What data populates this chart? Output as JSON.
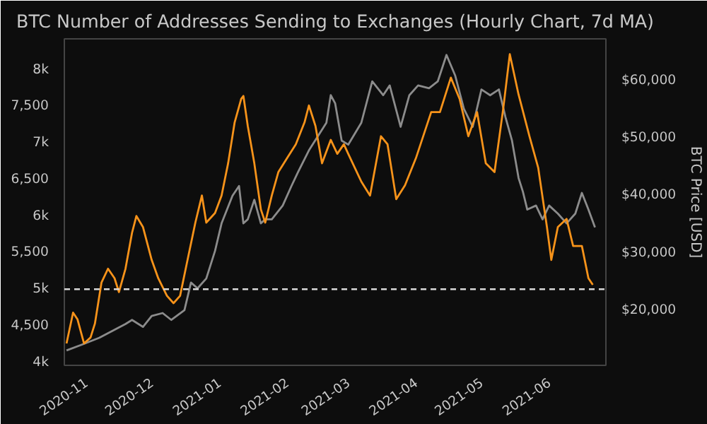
{
  "chart_data": {
    "type": "line",
    "title": "BTC Number of Addresses Sending to Exchanges (Hourly Chart, 7d MA)",
    "y2label": "BTC Price [USD]",
    "xlim": [
      "2020-10-22",
      "2021-06-27"
    ],
    "xticks": [
      "2020-11",
      "2020-12",
      "2021-01",
      "2021-02",
      "2021-03",
      "2021-04",
      "2021-05",
      "2021-06"
    ],
    "ylim": [
      3960,
      8420
    ],
    "yticks": [
      {
        "value": 4000,
        "label": "4k"
      },
      {
        "value": 4500,
        "label": "4,500"
      },
      {
        "value": 5000,
        "label": "5k"
      },
      {
        "value": 5500,
        "label": "5,500"
      },
      {
        "value": 6000,
        "label": "6k"
      },
      {
        "value": 6500,
        "label": "6,500"
      },
      {
        "value": 7000,
        "label": "7k"
      },
      {
        "value": 7500,
        "label": "7,500"
      },
      {
        "value": 8000,
        "label": "8k"
      }
    ],
    "y2lim": [
      10400,
      67200
    ],
    "y2ticks": [
      {
        "value": 20000,
        "label": "$20,000"
      },
      {
        "value": 30000,
        "label": "$30,000"
      },
      {
        "value": 40000,
        "label": "$40,000"
      },
      {
        "value": 50000,
        "label": "$50,000"
      },
      {
        "value": 60000,
        "label": "$60,000"
      }
    ],
    "grid": false,
    "line_style": "solid",
    "marker": "none",
    "ref_lines": [
      {
        "axis": "y",
        "value": 5000,
        "color": "#d8d8d8",
        "line_style": "dashed"
      }
    ],
    "series": [
      {
        "color": "#8c8c8c",
        "axis": "y2",
        "x": [
          "2020-10-23",
          "2020-10-30",
          "2020-11-07",
          "2020-11-13",
          "2020-11-19",
          "2020-11-22",
          "2020-11-27",
          "2020-12-01",
          "2020-12-06",
          "2020-12-10",
          "2020-12-16",
          "2020-12-19",
          "2020-12-22",
          "2020-12-26",
          "2020-12-30",
          "2021-01-02",
          "2021-01-07",
          "2021-01-10",
          "2021-01-12",
          "2021-01-14",
          "2021-01-17",
          "2021-01-20",
          "2021-01-22",
          "2021-01-25",
          "2021-01-30",
          "2021-02-03",
          "2021-02-06",
          "2021-02-11",
          "2021-02-15",
          "2021-02-19",
          "2021-02-21",
          "2021-02-23",
          "2021-02-26",
          "2021-03-01",
          "2021-03-07",
          "2021-03-12",
          "2021-03-17",
          "2021-03-20",
          "2021-03-25",
          "2021-03-29",
          "2021-04-02",
          "2021-04-07",
          "2021-04-11",
          "2021-04-15",
          "2021-04-19",
          "2021-04-23",
          "2021-04-27",
          "2021-05-01",
          "2021-05-05",
          "2021-05-09",
          "2021-05-12",
          "2021-05-15",
          "2021-05-18",
          "2021-05-20",
          "2021-05-22",
          "2021-05-26",
          "2021-05-29",
          "2021-06-01",
          "2021-06-05",
          "2021-06-09",
          "2021-06-13",
          "2021-06-16",
          "2021-06-19",
          "2021-06-22"
        ],
        "values": [
          13000,
          14000,
          15200,
          16400,
          17600,
          18300,
          17100,
          19000,
          19500,
          18300,
          20000,
          24800,
          23800,
          25500,
          30300,
          35100,
          39900,
          41600,
          35100,
          35800,
          39200,
          35100,
          35800,
          35800,
          38200,
          41600,
          44000,
          47800,
          50200,
          52600,
          57400,
          56000,
          49500,
          48800,
          52600,
          59800,
          57400,
          59100,
          51900,
          57400,
          59100,
          58600,
          59800,
          64400,
          60800,
          55000,
          51900,
          58400,
          57400,
          58400,
          53600,
          49500,
          43000,
          40600,
          37500,
          38200,
          35800,
          38200,
          36800,
          35100,
          36800,
          40400,
          37500,
          34400
        ]
      },
      {
        "color": "#f7931a",
        "x": [
          "2020-10-23",
          "2020-10-26",
          "2020-10-28",
          "2020-10-31",
          "2020-11-03",
          "2020-11-05",
          "2020-11-08",
          "2020-11-11",
          "2020-11-14",
          "2020-11-16",
          "2020-11-19",
          "2020-11-22",
          "2020-11-24",
          "2020-11-27",
          "2020-12-01",
          "2020-12-04",
          "2020-12-08",
          "2020-12-11",
          "2020-12-14",
          "2020-12-17",
          "2020-12-21",
          "2020-12-24",
          "2020-12-26",
          "2020-12-30",
          "2021-01-02",
          "2021-01-05",
          "2021-01-08",
          "2021-01-11",
          "2021-01-12",
          "2021-01-14",
          "2021-01-17",
          "2021-01-20",
          "2021-01-22",
          "2021-01-25",
          "2021-01-28",
          "2021-02-01",
          "2021-02-05",
          "2021-02-09",
          "2021-02-11",
          "2021-02-14",
          "2021-02-17",
          "2021-02-21",
          "2021-02-24",
          "2021-02-27",
          "2021-03-01",
          "2021-03-07",
          "2021-03-11",
          "2021-03-16",
          "2021-03-19",
          "2021-03-23",
          "2021-03-27",
          "2021-04-01",
          "2021-04-08",
          "2021-04-12",
          "2021-04-17",
          "2021-04-21",
          "2021-04-25",
          "2021-04-29",
          "2021-05-03",
          "2021-05-07",
          "2021-05-11",
          "2021-05-14",
          "2021-05-18",
          "2021-05-23",
          "2021-05-27",
          "2021-05-31",
          "2021-06-02",
          "2021-06-05",
          "2021-06-09",
          "2021-06-12",
          "2021-06-16",
          "2021-06-19",
          "2021-06-21"
        ],
        "values": [
          4260,
          4680,
          4590,
          4260,
          4340,
          4530,
          5090,
          5280,
          5150,
          4960,
          5280,
          5770,
          6000,
          5850,
          5400,
          5150,
          4910,
          4810,
          4910,
          5340,
          5910,
          6280,
          5910,
          6040,
          6280,
          6720,
          7280,
          7600,
          7640,
          7230,
          6720,
          6090,
          5910,
          6280,
          6600,
          6790,
          6980,
          7280,
          7510,
          7230,
          6720,
          7040,
          6850,
          6980,
          6850,
          6470,
          6280,
          7090,
          6980,
          6230,
          6420,
          6790,
          7420,
          7420,
          7890,
          7600,
          7090,
          7420,
          6720,
          6600,
          7470,
          8210,
          7660,
          7090,
          6660,
          5850,
          5400,
          5850,
          5960,
          5590,
          5590,
          5150,
          5060
        ]
      }
    ]
  }
}
